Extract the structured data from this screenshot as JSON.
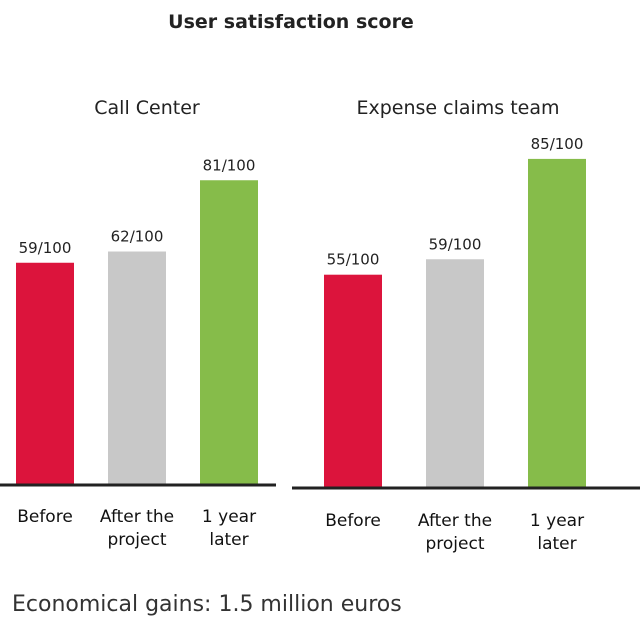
{
  "title": "User satisfaction score",
  "footer": "Economical gains: 1.5 million euros",
  "colors": {
    "before": "#dc143c",
    "after": "#c8c8c8",
    "later": "#86bc4a",
    "axis": "#222222"
  },
  "chart_data": [
    {
      "type": "bar",
      "title": "Call Center",
      "categories": [
        "Before",
        "After the project",
        "1 year later"
      ],
      "category_lines": [
        [
          "Before"
        ],
        [
          "After the",
          "project"
        ],
        [
          "1 year",
          "later"
        ]
      ],
      "values": [
        59,
        62,
        81
      ],
      "value_labels": [
        "59/100",
        "62/100",
        "81/100"
      ],
      "ylim": [
        0,
        100
      ],
      "grid": false
    },
    {
      "type": "bar",
      "title": "Expense claims team",
      "categories": [
        "Before",
        "After the project",
        "1 year later"
      ],
      "category_lines": [
        [
          "Before"
        ],
        [
          "After the",
          "project"
        ],
        [
          "1 year",
          "later"
        ]
      ],
      "values": [
        55,
        59,
        85
      ],
      "value_labels": [
        "55/100",
        "59/100",
        "85/100"
      ],
      "ylim": [
        0,
        100
      ],
      "grid": false
    }
  ]
}
